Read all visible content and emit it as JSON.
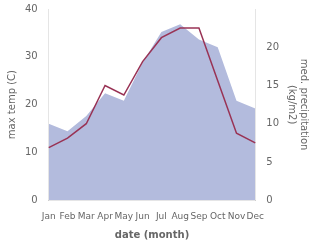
{
  "chart_data": {
    "type": "line",
    "xlabel": "date (month)",
    "ylabel": "max temp (C)",
    "y2label": "med. precipitation\n(kg/m2)",
    "categories": [
      "Jan",
      "Feb",
      "Mar",
      "Apr",
      "May",
      "Jun",
      "Jul",
      "Aug",
      "Sep",
      "Oct",
      "Nov",
      "Dec"
    ],
    "series": [
      {
        "type": "area",
        "axis": "y2",
        "color": "#b3bbdd",
        "values": [
          10,
          9,
          11,
          14,
          13,
          18,
          22,
          23,
          21,
          20,
          13,
          12
        ]
      },
      {
        "type": "line",
        "color": "#993355",
        "values": [
          11,
          13,
          16,
          24,
          22,
          29,
          34,
          36,
          36,
          25,
          14,
          12
        ]
      }
    ],
    "ylim": [
      0,
      40
    ],
    "yticks": [
      0,
      10,
      20,
      30,
      40
    ],
    "y2lim": [
      0,
      25
    ],
    "y2ticks": [
      0,
      5,
      10,
      15,
      20
    ],
    "grid": false
  }
}
